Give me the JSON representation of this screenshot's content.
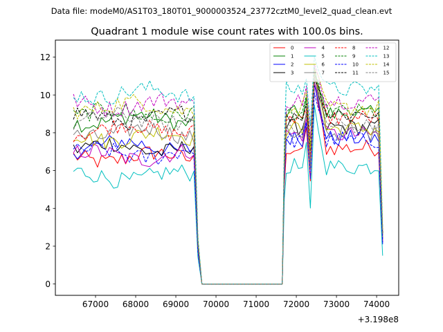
{
  "figure": {
    "suptitle": "Data file: modeM0/AS1T03_180T01_9000003524_23772cztM0_level2_quad_clean.evt"
  },
  "chart_data": {
    "type": "line",
    "title": "Quadrant 1 module wise count rates with 100.0s bins.",
    "xlabel": "",
    "ylabel": "",
    "x_offset_label": "+3.198e8",
    "xlim": [
      66000,
      74550
    ],
    "ylim": [
      -0.6,
      12.9
    ],
    "xticks": [
      67000,
      68000,
      69000,
      70000,
      71000,
      72000,
      73000,
      74000
    ],
    "xtick_labels": [
      "67000",
      "68000",
      "69000",
      "70000",
      "71000",
      "72000",
      "73000",
      "74000"
    ],
    "yticks": [
      0,
      2,
      4,
      6,
      8,
      10,
      12
    ],
    "ytick_labels": [
      "0",
      "2",
      "4",
      "6",
      "8",
      "10",
      "12"
    ],
    "legend_position": "top-right",
    "legend_columns": 4,
    "segment1": {
      "x_start": 66450,
      "x_end": 69450,
      "step": 100
    },
    "segment2": {
      "x_start": 71750,
      "x_end": 74050,
      "step": 100
    },
    "zero_gap": {
      "drop_x": 69550,
      "zero_start_x": 69650,
      "zero_end_x": 71650,
      "rise_x": 71700
    },
    "end_x": 74150,
    "peak": {
      "x_start": 72250,
      "x_end": 72650
    },
    "series": [
      {
        "name": "0",
        "color": "#ff0000",
        "dashed": false,
        "level1": 6.7,
        "level2": 7.2,
        "peak": 10.5,
        "end": 2.2
      },
      {
        "name": "1",
        "color": "#008000",
        "dashed": false,
        "level1": 8.7,
        "level2": 9.0,
        "peak": 11.2,
        "end": 2.6
      },
      {
        "name": "2",
        "color": "#0000ff",
        "dashed": false,
        "level1": 7.3,
        "level2": 7.7,
        "peak": 10.4,
        "end": 2.1
      },
      {
        "name": "3",
        "color": "#000000",
        "dashed": false,
        "level1": 7.2,
        "level2": 8.3,
        "peak": 10.8,
        "end": 2.4
      },
      {
        "name": "4",
        "color": "#bf00bf",
        "dashed": false,
        "level1": 6.8,
        "level2": 7.9,
        "peak": 10.6,
        "end": 2.3
      },
      {
        "name": "5",
        "color": "#00bfbf",
        "dashed": false,
        "level1": 5.7,
        "level2": 6.2,
        "peak": 9.3,
        "end": 1.5
      },
      {
        "name": "6",
        "color": "#bfbf00",
        "dashed": false,
        "level1": 7.8,
        "level2": 8.2,
        "peak": 11.3,
        "end": 2.7
      },
      {
        "name": "7",
        "color": "#808080",
        "dashed": false,
        "level1": 8.0,
        "level2": 8.0,
        "peak": 10.9,
        "end": 2.5
      },
      {
        "name": "8",
        "color": "#ff0000",
        "dashed": true,
        "level1": 8.2,
        "level2": 8.8,
        "peak": 11.0,
        "end": 2.6
      },
      {
        "name": "9",
        "color": "#008000",
        "dashed": true,
        "level1": 9.0,
        "level2": 9.1,
        "peak": 11.1,
        "end": 2.7
      },
      {
        "name": "10",
        "color": "#0000ff",
        "dashed": true,
        "level1": 6.9,
        "level2": 7.6,
        "peak": 10.2,
        "end": 2.2
      },
      {
        "name": "11",
        "color": "#000000",
        "dashed": true,
        "level1": 8.8,
        "level2": 9.0,
        "peak": 11.0,
        "end": 2.7
      },
      {
        "name": "12",
        "color": "#bf00bf",
        "dashed": true,
        "level1": 9.5,
        "level2": 9.7,
        "peak": 11.6,
        "end": 2.9
      },
      {
        "name": "13",
        "color": "#00bfbf",
        "dashed": true,
        "level1": 10.1,
        "level2": 10.3,
        "peak": 12.2,
        "end": 3.0
      },
      {
        "name": "14",
        "color": "#bfbf00",
        "dashed": true,
        "level1": 9.4,
        "level2": 9.3,
        "peak": 11.4,
        "end": 2.9
      },
      {
        "name": "15",
        "color": "#808080",
        "dashed": true,
        "level1": 8.7,
        "level2": 8.4,
        "peak": 10.9,
        "end": 2.6
      }
    ]
  }
}
